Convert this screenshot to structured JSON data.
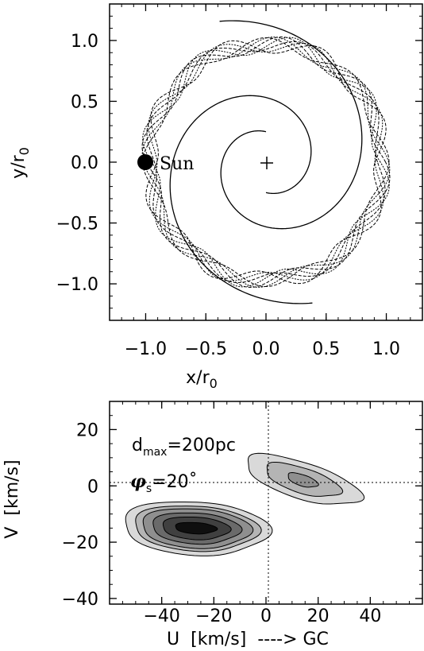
{
  "chart_data": [
    {
      "type": "scatter",
      "xlabel": "x/r",
      "xlabel_sub": "0",
      "ylabel": "y/r",
      "ylabel_sub": "0",
      "xlim": [
        -1.3,
        1.3
      ],
      "ylim": [
        -1.3,
        1.3
      ],
      "xticks": [
        "−1.0",
        "−0.5",
        "0.0",
        "0.5",
        "1.0"
      ],
      "xtick_values": [
        -1.0,
        -0.5,
        0.0,
        0.5,
        1.0
      ],
      "yticks": [
        "1.0",
        "0.5",
        "0.0",
        "−0.5",
        "−1.0"
      ],
      "ytick_values": [
        1.0,
        0.5,
        0.0,
        -0.5,
        -1.0
      ],
      "grid": false,
      "sun": {
        "label": "Sun",
        "x": -1.0,
        "y": 0.0
      },
      "center_marker": {
        "x": 0.0,
        "y": 0.0,
        "symbol": "+"
      },
      "orbit": {
        "radius_base": 0.97,
        "modulation": 0.07,
        "lobes": 8,
        "strands": 7
      },
      "spiral_arms": [
        {
          "r_start": 0.25,
          "r_end": 1.22,
          "theta_start_deg": 90,
          "pitch": 0.24
        },
        {
          "r_start": 0.25,
          "r_end": 1.22,
          "theta_start_deg": 270,
          "pitch": 0.24
        }
      ]
    },
    {
      "type": "contour",
      "xlabel": "U  [km/s]  ----> GC",
      "ylabel": "V  [km/s]",
      "xlim": [
        -60,
        60
      ],
      "ylim": [
        -42,
        30
      ],
      "xticks": [
        "−40",
        "−20",
        "0",
        "20",
        "40"
      ],
      "xtick_values": [
        -40,
        -20,
        0,
        20,
        40
      ],
      "yticks": [
        "20",
        "0",
        "−20",
        "−40"
      ],
      "ytick_values": [
        20,
        0,
        -20,
        -40
      ],
      "reference_lines": {
        "x": 0,
        "y": 0,
        "style": "dotted"
      },
      "annotations": {
        "dmax_prefix": "d",
        "dmax_sub": "max",
        "dmax_value": "=200pc",
        "phi_symbol": "φ",
        "phi_sub": "s",
        "phi_value": "=20˚"
      },
      "peaks": [
        {
          "name": "main peak",
          "u": -27,
          "v": -15,
          "levels": 6
        },
        {
          "name": "secondary peak",
          "u": 14,
          "v": 2,
          "levels": 3
        }
      ],
      "level_colors": [
        "#d9d9d9",
        "#b4b4b4",
        "#8f8f8f",
        "#6a6a6a",
        "#404040",
        "#0f0f0f"
      ]
    }
  ]
}
